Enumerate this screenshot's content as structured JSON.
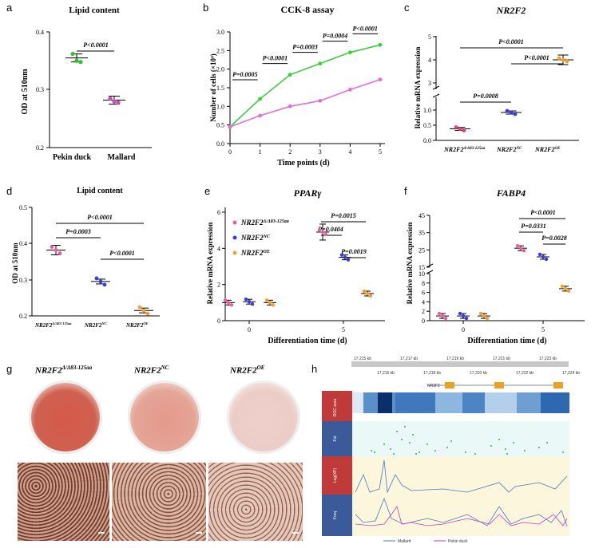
{
  "panels": {
    "a": {
      "label": "a",
      "title": "Lipid content",
      "ylabel": "OD at 510nm",
      "yticks": [
        "0.2",
        "0.3",
        "0.4"
      ],
      "categories": [
        "Pekin duck",
        "Mallard"
      ],
      "pvalue": "P<0.0001"
    },
    "b": {
      "label": "b",
      "title": "CCK-8 assay",
      "ylabel": "Number of cells (×10⁴)",
      "xlabel": "Time points (d)",
      "yticks": [
        "0.0",
        "0.5",
        "1.0",
        "1.5",
        "2.0",
        "2.5",
        "3.0"
      ],
      "xticks": [
        "0",
        "1",
        "2",
        "3",
        "4",
        "5"
      ],
      "pvalues": [
        "P=0.0005",
        "P<0.0001",
        "P=0.0003",
        "P=0.0004",
        "P<0.0001"
      ]
    },
    "c": {
      "label": "c",
      "title": "NR2F2",
      "ylabel": "Relative mRNA expression",
      "yticks_low": [
        "0.0",
        "0.5",
        "1.0"
      ],
      "yticks_high": [
        "3",
        "4",
        "5"
      ],
      "categories": [
        "NR2F2",
        "NR2F2",
        "NR2F2"
      ],
      "sups": [
        "Δ/Δ83-125aa",
        "NC",
        "OE"
      ],
      "pvalues": [
        "P<0.0001",
        "P<0.0001",
        "P=0.0008"
      ]
    },
    "d": {
      "label": "d",
      "title": "Lipid content",
      "ylabel": "OD at 510nm",
      "yticks": [
        "0.2",
        "0.3",
        "0.4",
        "0.5"
      ],
      "categories": [
        "NR2F2",
        "NR2F2",
        "NR2F2"
      ],
      "sups": [
        "Δ/Δ83-125aa",
        "NC",
        "OE"
      ],
      "pvalues": [
        "P<0.0001",
        "P=0.0003",
        "P<0.0001"
      ]
    },
    "e": {
      "label": "e",
      "title": "PPARγ",
      "ylabel": "Relative mRNA expression",
      "xlabel": "Differentiation time (d)",
      "yticks": [
        "0",
        "2",
        "4",
        "6"
      ],
      "xticks": [
        "0",
        "5"
      ],
      "legend": [
        {
          "name": "NR2F2",
          "sup": "Δ/Δ83-125aa",
          "color": "#e85fa0"
        },
        {
          "name": "NR2F2",
          "sup": "NC",
          "color": "#3a3ad8"
        },
        {
          "name": "NR2F2",
          "sup": "OE",
          "color": "#f0a030"
        }
      ],
      "pvalues": [
        "P=0.0015",
        "P=0.0404",
        "P=0.0019"
      ]
    },
    "f": {
      "label": "f",
      "title": "FABP4",
      "ylabel": "Relative mRNA expression",
      "xlabel": "Differentiation time (d)",
      "yticks_low": [
        "0",
        "2",
        "4",
        "6",
        "8",
        "10"
      ],
      "yticks_high": [
        "15",
        "25",
        "35",
        "45"
      ],
      "xticks": [
        "0",
        "5"
      ],
      "pvalues": [
        "P<0.0001",
        "P=0.0331",
        "P=0.0028"
      ]
    },
    "g": {
      "label": "g",
      "genotypes": [
        {
          "name": "NR2F2",
          "sup": "Δ/Δ83-125aa"
        },
        {
          "name": "NR2F2",
          "sup": "NC"
        },
        {
          "name": "NR2F2",
          "sup": "OE"
        }
      ]
    },
    "h": {
      "label": "h",
      "gene": "NR2F2",
      "coords": [
        "17,215 kb",
        "17,216 kb",
        "17,217 kb",
        "17,218 kb",
        "17,219 kb",
        "17,220 kb",
        "17,221 kb",
        "17,222 kb",
        "17,223 kb",
        "17,224 kb"
      ],
      "tracks": [
        "ROC area",
        "Fst",
        "Log(XP)",
        "Freq"
      ],
      "legend": [
        "Mallard",
        "Pekin duck"
      ]
    }
  },
  "chart_data": [
    {
      "type": "scatter",
      "panel": "a",
      "title": "Lipid content",
      "ylabel": "OD at 510nm",
      "ylim": [
        0.2,
        0.4
      ],
      "categories": [
        "Pekin duck",
        "Mallard"
      ],
      "values": [
        0.355,
        0.282
      ],
      "points": [
        [
          0.362,
          0.35,
          0.348
        ],
        [
          0.285,
          0.28,
          0.278
        ]
      ]
    },
    {
      "type": "line",
      "panel": "b",
      "title": "CCK-8 assay",
      "xlabel": "Time points (d)",
      "ylabel": "Number of cells (×10⁴)",
      "x": [
        0,
        1,
        2,
        3,
        4,
        5
      ],
      "ylim": [
        0,
        3.0
      ],
      "series": [
        {
          "color": "#3ccc3c",
          "values": [
            0.45,
            1.2,
            1.85,
            2.15,
            2.45,
            2.65
          ]
        },
        {
          "color": "#e070d8",
          "values": [
            0.45,
            0.75,
            1.0,
            1.15,
            1.45,
            1.72
          ]
        }
      ]
    },
    {
      "type": "scatter",
      "panel": "c",
      "title": "NR2F2",
      "ylabel": "Relative mRNA expression",
      "values": [
        0.38,
        0.92,
        4.0
      ]
    },
    {
      "type": "scatter",
      "panel": "d",
      "title": "Lipid content",
      "ylabel": "OD at 510nm",
      "ylim": [
        0.2,
        0.5
      ],
      "values": [
        0.382,
        0.295,
        0.215
      ]
    },
    {
      "type": "scatter",
      "panel": "e",
      "title": "PPARγ",
      "xlabel": "Differentiation time (d)",
      "ylabel": "Relative mRNA expression",
      "x": [
        "0",
        "5"
      ],
      "ylim": [
        0,
        6
      ],
      "series": [
        {
          "values": [
            1.0,
            4.9
          ]
        },
        {
          "values": [
            1.05,
            3.5
          ]
        },
        {
          "values": [
            1.0,
            1.5
          ]
        }
      ]
    },
    {
      "type": "scatter",
      "panel": "f",
      "title": "FABP4",
      "xlabel": "Differentiation time (d)",
      "ylabel": "Relative mRNA expression",
      "x": [
        "0",
        "5"
      ],
      "series": [
        {
          "values": [
            1.0,
            26.0
          ]
        },
        {
          "values": [
            1.0,
            21.0
          ]
        },
        {
          "values": [
            1.0,
            6.8
          ]
        }
      ]
    }
  ]
}
